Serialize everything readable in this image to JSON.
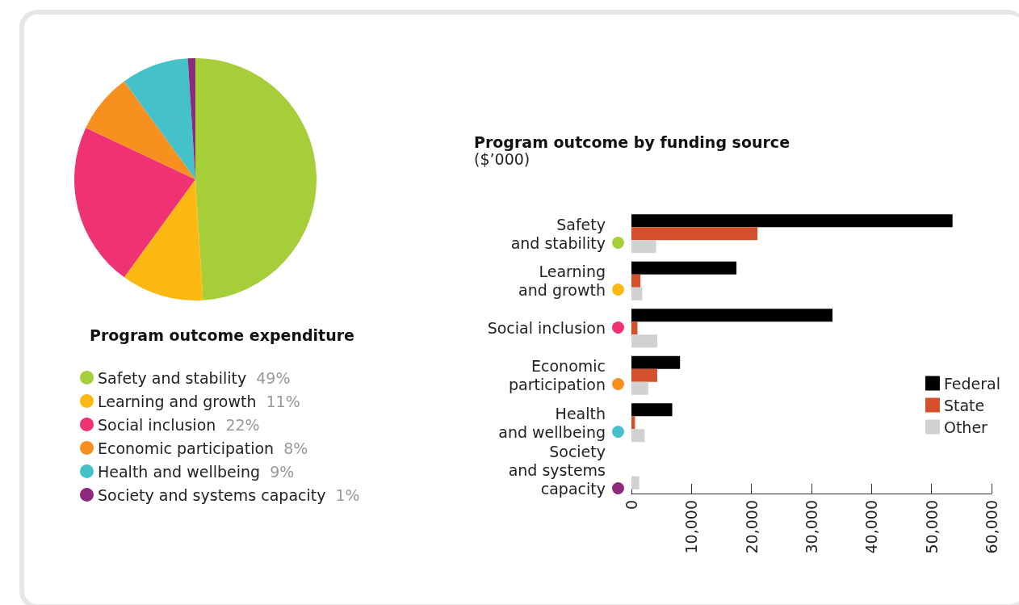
{
  "chart_data": [
    {
      "type": "pie",
      "title": "Program outcome expenditure",
      "categories": [
        "Safety and stability",
        "Learning and growth",
        "Social inclusion",
        "Economic participation",
        "Health and wellbeing",
        "Society and systems capacity"
      ],
      "values": [
        49,
        11,
        22,
        8,
        9,
        1
      ],
      "value_labels": [
        "49%",
        "11%",
        "22%",
        "8%",
        "9%",
        "1%"
      ],
      "colors": [
        "#a6ce39",
        "#fdb913",
        "#ef3274",
        "#f7901e",
        "#45c1c9",
        "#8e2a7e"
      ],
      "legend": "bottom left"
    },
    {
      "type": "bar",
      "orientation": "horizontal",
      "title": "Program outcome by funding source",
      "subtitle": "($’000)",
      "categories": [
        "Safety\nand stability",
        "Learning\nand growth",
        "Social inclusion",
        "Economic\nparticipation",
        "Health\nand wellbeing",
        "Society\nand systems\ncapacity"
      ],
      "series": [
        {
          "name": "Federal",
          "color": "#000000",
          "values": [
            53500,
            17500,
            33500,
            8100,
            6800,
            0
          ]
        },
        {
          "name": "State",
          "color": "#d4502a",
          "values": [
            21000,
            1500,
            1000,
            4300,
            600,
            0
          ]
        },
        {
          "name": "Other",
          "color": "#d0d1d3",
          "values": [
            4100,
            1800,
            4300,
            2800,
            2200,
            1300
          ]
        }
      ],
      "xlim": [
        0,
        60000
      ],
      "xticks": [
        {
          "value": 0,
          "label": "0"
        },
        {
          "value": 10000,
          "label": "10,000"
        },
        {
          "value": 20000,
          "label": "20,000"
        },
        {
          "value": 30000,
          "label": "30,000"
        },
        {
          "value": 40000,
          "label": "40,000"
        },
        {
          "value": 50000,
          "label": "50,000"
        },
        {
          "value": 60000,
          "label": "60,000"
        }
      ],
      "grid": false,
      "legend": "right"
    }
  ]
}
